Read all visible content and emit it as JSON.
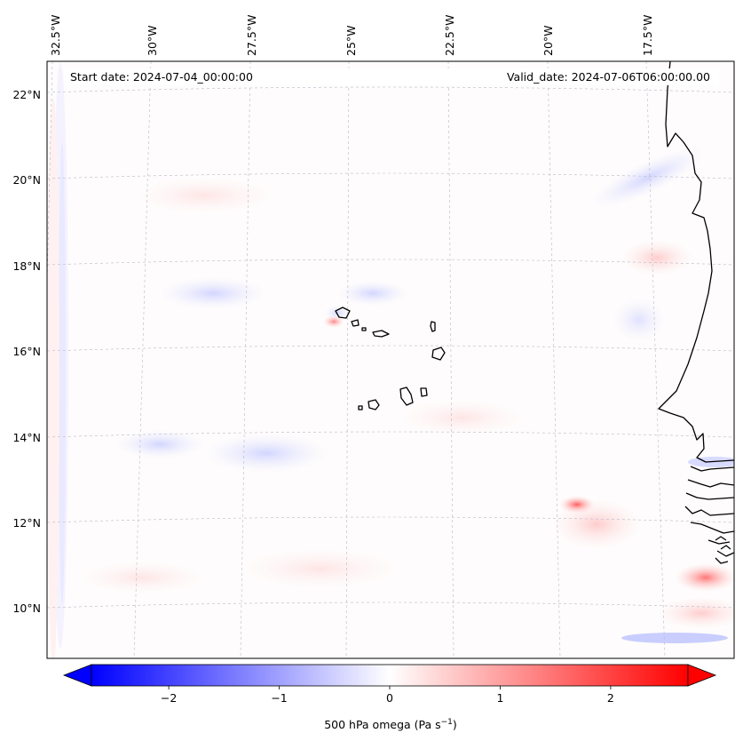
{
  "header": {
    "start_date": "Start date: 2024-07-04_00:00:00",
    "valid_date": "Valid_date: 2024-07-06T06:00:00.00"
  },
  "map": {
    "lon_labels": [
      "32.5°W",
      "30°W",
      "27.5°W",
      "25°W",
      "22.5°W",
      "20°W",
      "17.5°W"
    ],
    "lat_labels": [
      "22°N",
      "20°N",
      "18°N",
      "16°N",
      "14°N",
      "12°N",
      "10°N"
    ],
    "gridlines": true
  },
  "colorbar": {
    "colormap": "bwr",
    "min_color": "#0000ff",
    "mid_color": "#ffffff",
    "max_color": "#ff0000",
    "range": [
      -2.7,
      2.7
    ],
    "ticks": [
      -2,
      -1,
      0,
      1,
      2
    ],
    "tick_labels": [
      "−2",
      "−1",
      "0",
      "1",
      "2"
    ],
    "extend": "both",
    "label_main": "500 hPa omega (Pa s",
    "label_exp": "−1",
    "label_end": ")"
  }
}
